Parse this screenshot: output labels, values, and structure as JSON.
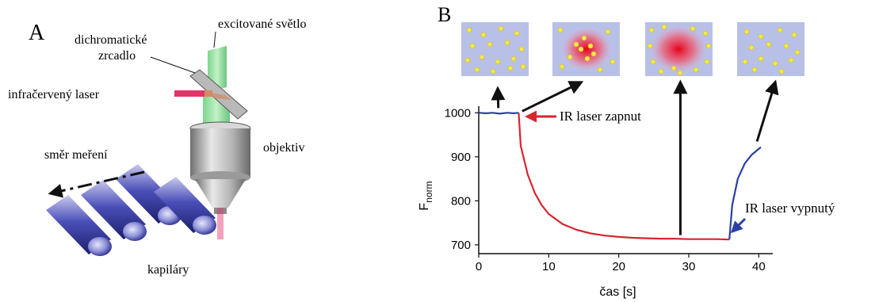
{
  "panel_a": {
    "label": "A",
    "labels": {
      "excitation_light": "excitované světlo",
      "dichroic_line1": "dichromatické",
      "dichroic_line2": "zrcadlo",
      "ir_laser": "infračervený laser",
      "objective": "objektiv",
      "measure_dir": "směr meření",
      "capillaries": "kapiláry"
    }
  },
  "panel_b": {
    "label": "B",
    "annotations": {
      "laser_on": "IR laser zapnut",
      "laser_off": "IR laser vypnutý"
    },
    "snapshots": [
      "before",
      "laser-on",
      "steady-state",
      "recovery"
    ]
  },
  "chart_data": {
    "type": "line",
    "title": "",
    "xlabel": "čas [s]",
    "ylabel": "F_norm",
    "ylabel_main": "F",
    "ylabel_sub": "norm",
    "xlim": [
      0,
      42
    ],
    "ylim": [
      680,
      1015
    ],
    "xticks": [
      0,
      10,
      20,
      30,
      40
    ],
    "yticks": [
      700,
      800,
      900,
      1000
    ],
    "grid": false,
    "series": [
      {
        "color": "#2b3fa6",
        "x": [
          0,
          1,
          2,
          3,
          4,
          5,
          5.7
        ],
        "y": [
          1000,
          999,
          1000,
          998,
          1000,
          999,
          1000
        ]
      },
      {
        "color": "#d6262f",
        "x": [
          5.7,
          6,
          7,
          8,
          9,
          10,
          12,
          14,
          16,
          18,
          20,
          22,
          24,
          26,
          28,
          30,
          32,
          34,
          35.8
        ],
        "y": [
          1000,
          925,
          860,
          818,
          790,
          770,
          747,
          734,
          726,
          721,
          718,
          716,
          715,
          714,
          714,
          713,
          713,
          713,
          712
        ]
      },
      {
        "color": "#2b3fa6",
        "x": [
          35.8,
          36.2,
          37,
          38,
          39,
          40.3
        ],
        "y": [
          712,
          790,
          850,
          885,
          905,
          922
        ]
      }
    ],
    "annotation_arrows_x": [
      2.8,
      28.8,
      40.2
    ]
  }
}
